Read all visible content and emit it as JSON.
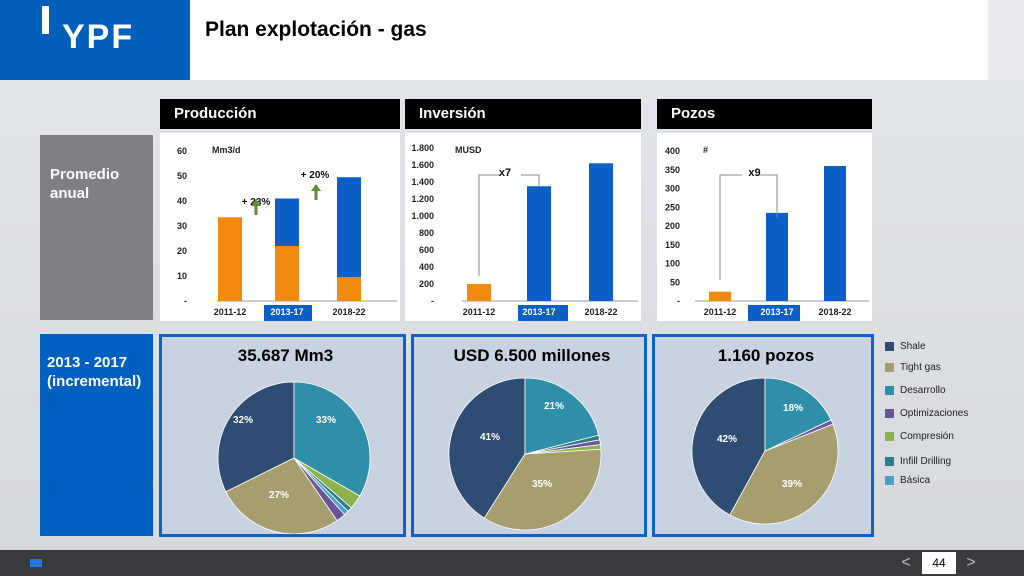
{
  "header": {
    "logo": "YPF",
    "title": "Plan explotación - gas"
  },
  "rows": {
    "row1": "Promedio anual",
    "row2": "2013 - 2017 (incremental)"
  },
  "panels": [
    {
      "header": "Producción",
      "total": "35.687 Mm3"
    },
    {
      "header": "Inversión",
      "total": "USD 6.500 millones"
    },
    {
      "header": "Pozos",
      "total": "1.160 pozos"
    }
  ],
  "legend": [
    {
      "label": "Shale",
      "color": "#2f4d73"
    },
    {
      "label": "Tight gas",
      "color": "#a69e6e"
    },
    {
      "label": "Desarrollo",
      "color": "#2f8fa8"
    },
    {
      "label": "Optimizaciones",
      "color": "#6b559a"
    },
    {
      "label": "Compresión",
      "color": "#8db24a"
    },
    {
      "label": "Infill Drilling",
      "color": "#2c7d86"
    },
    {
      "label": "Básica",
      "color": "#46a1c9"
    }
  ],
  "footer": {
    "page": "44",
    "prev": "<",
    "next": ">"
  },
  "chart_data": [
    {
      "type": "bar",
      "unit": "Mm3/d",
      "categories": [
        "2011-12",
        "2013-17",
        "2018-22"
      ],
      "highlight": "2013-17",
      "yticks": [
        "-",
        "10",
        "20",
        "30",
        "40",
        "50",
        "60"
      ],
      "ylim": [
        0,
        60
      ],
      "stacks": [
        [
          {
            "value": 33.5,
            "color": "#f28a12"
          }
        ],
        [
          {
            "value": 22,
            "color": "#f28a12"
          },
          {
            "value": 19,
            "color": "#0b5fc6"
          }
        ],
        [
          {
            "value": 9.5,
            "color": "#f28a12"
          },
          {
            "value": 40,
            "color": "#0b5fc6"
          }
        ]
      ],
      "annotations": [
        "+ 23%",
        "+ 20%"
      ]
    },
    {
      "type": "bar",
      "unit": "MUSD",
      "categories": [
        "2011-12",
        "2013-17",
        "2018-22"
      ],
      "highlight": "2013-17",
      "yticks": [
        "-",
        "200",
        "400",
        "600",
        "800",
        "1.000",
        "1.200",
        "1.400",
        "1.600",
        "1.800"
      ],
      "ylim": [
        0,
        1800
      ],
      "stacks": [
        [
          {
            "value": 200,
            "color": "#f28a12"
          }
        ],
        [
          {
            "value": 1350,
            "color": "#0b5fc6"
          }
        ],
        [
          {
            "value": 1620,
            "color": "#0b5fc6"
          }
        ]
      ],
      "annotations": [
        "x7"
      ]
    },
    {
      "type": "bar",
      "unit": "#",
      "categories": [
        "2011-12",
        "2013-17",
        "2018-22"
      ],
      "highlight": "2013-17",
      "yticks": [
        "-",
        "50",
        "100",
        "150",
        "200",
        "250",
        "300",
        "350",
        "400"
      ],
      "ylim": [
        0,
        400
      ],
      "stacks": [
        [
          {
            "value": 25,
            "color": "#f28a12"
          }
        ],
        [
          {
            "value": 235,
            "color": "#0b5fc6"
          }
        ],
        [
          {
            "value": 360,
            "color": "#0b5fc6"
          }
        ]
      ],
      "annotations": [
        "x9"
      ]
    },
    {
      "type": "pie",
      "slices": [
        {
          "category": "Shale",
          "value": 32,
          "label": "32%"
        },
        {
          "category": "Tight gas",
          "value": 27,
          "label": "27%"
        },
        {
          "category": "Optimizaciones",
          "value": 2
        },
        {
          "category": "Básica",
          "value": 1
        },
        {
          "category": "Infill Drilling",
          "value": 1
        },
        {
          "category": "Compresión",
          "value": 3
        },
        {
          "category": "Desarrollo",
          "value": 33,
          "label": "33%"
        }
      ]
    },
    {
      "type": "pie",
      "slices": [
        {
          "category": "Shale",
          "value": 41,
          "label": "41%"
        },
        {
          "category": "Tight gas",
          "value": 35,
          "label": "35%"
        },
        {
          "category": "Compresión",
          "value": 1
        },
        {
          "category": "Optimizaciones",
          "value": 1
        },
        {
          "category": "Infill Drilling",
          "value": 1
        },
        {
          "category": "Desarrollo",
          "value": 21,
          "label": "21%"
        }
      ]
    },
    {
      "type": "pie",
      "slices": [
        {
          "category": "Shale",
          "value": 42,
          "label": "42%"
        },
        {
          "category": "Tight gas",
          "value": 39,
          "label": "39%"
        },
        {
          "category": "Optimizaciones",
          "value": 1
        },
        {
          "category": "Desarrollo",
          "value": 18,
          "label": "18%"
        }
      ]
    }
  ]
}
